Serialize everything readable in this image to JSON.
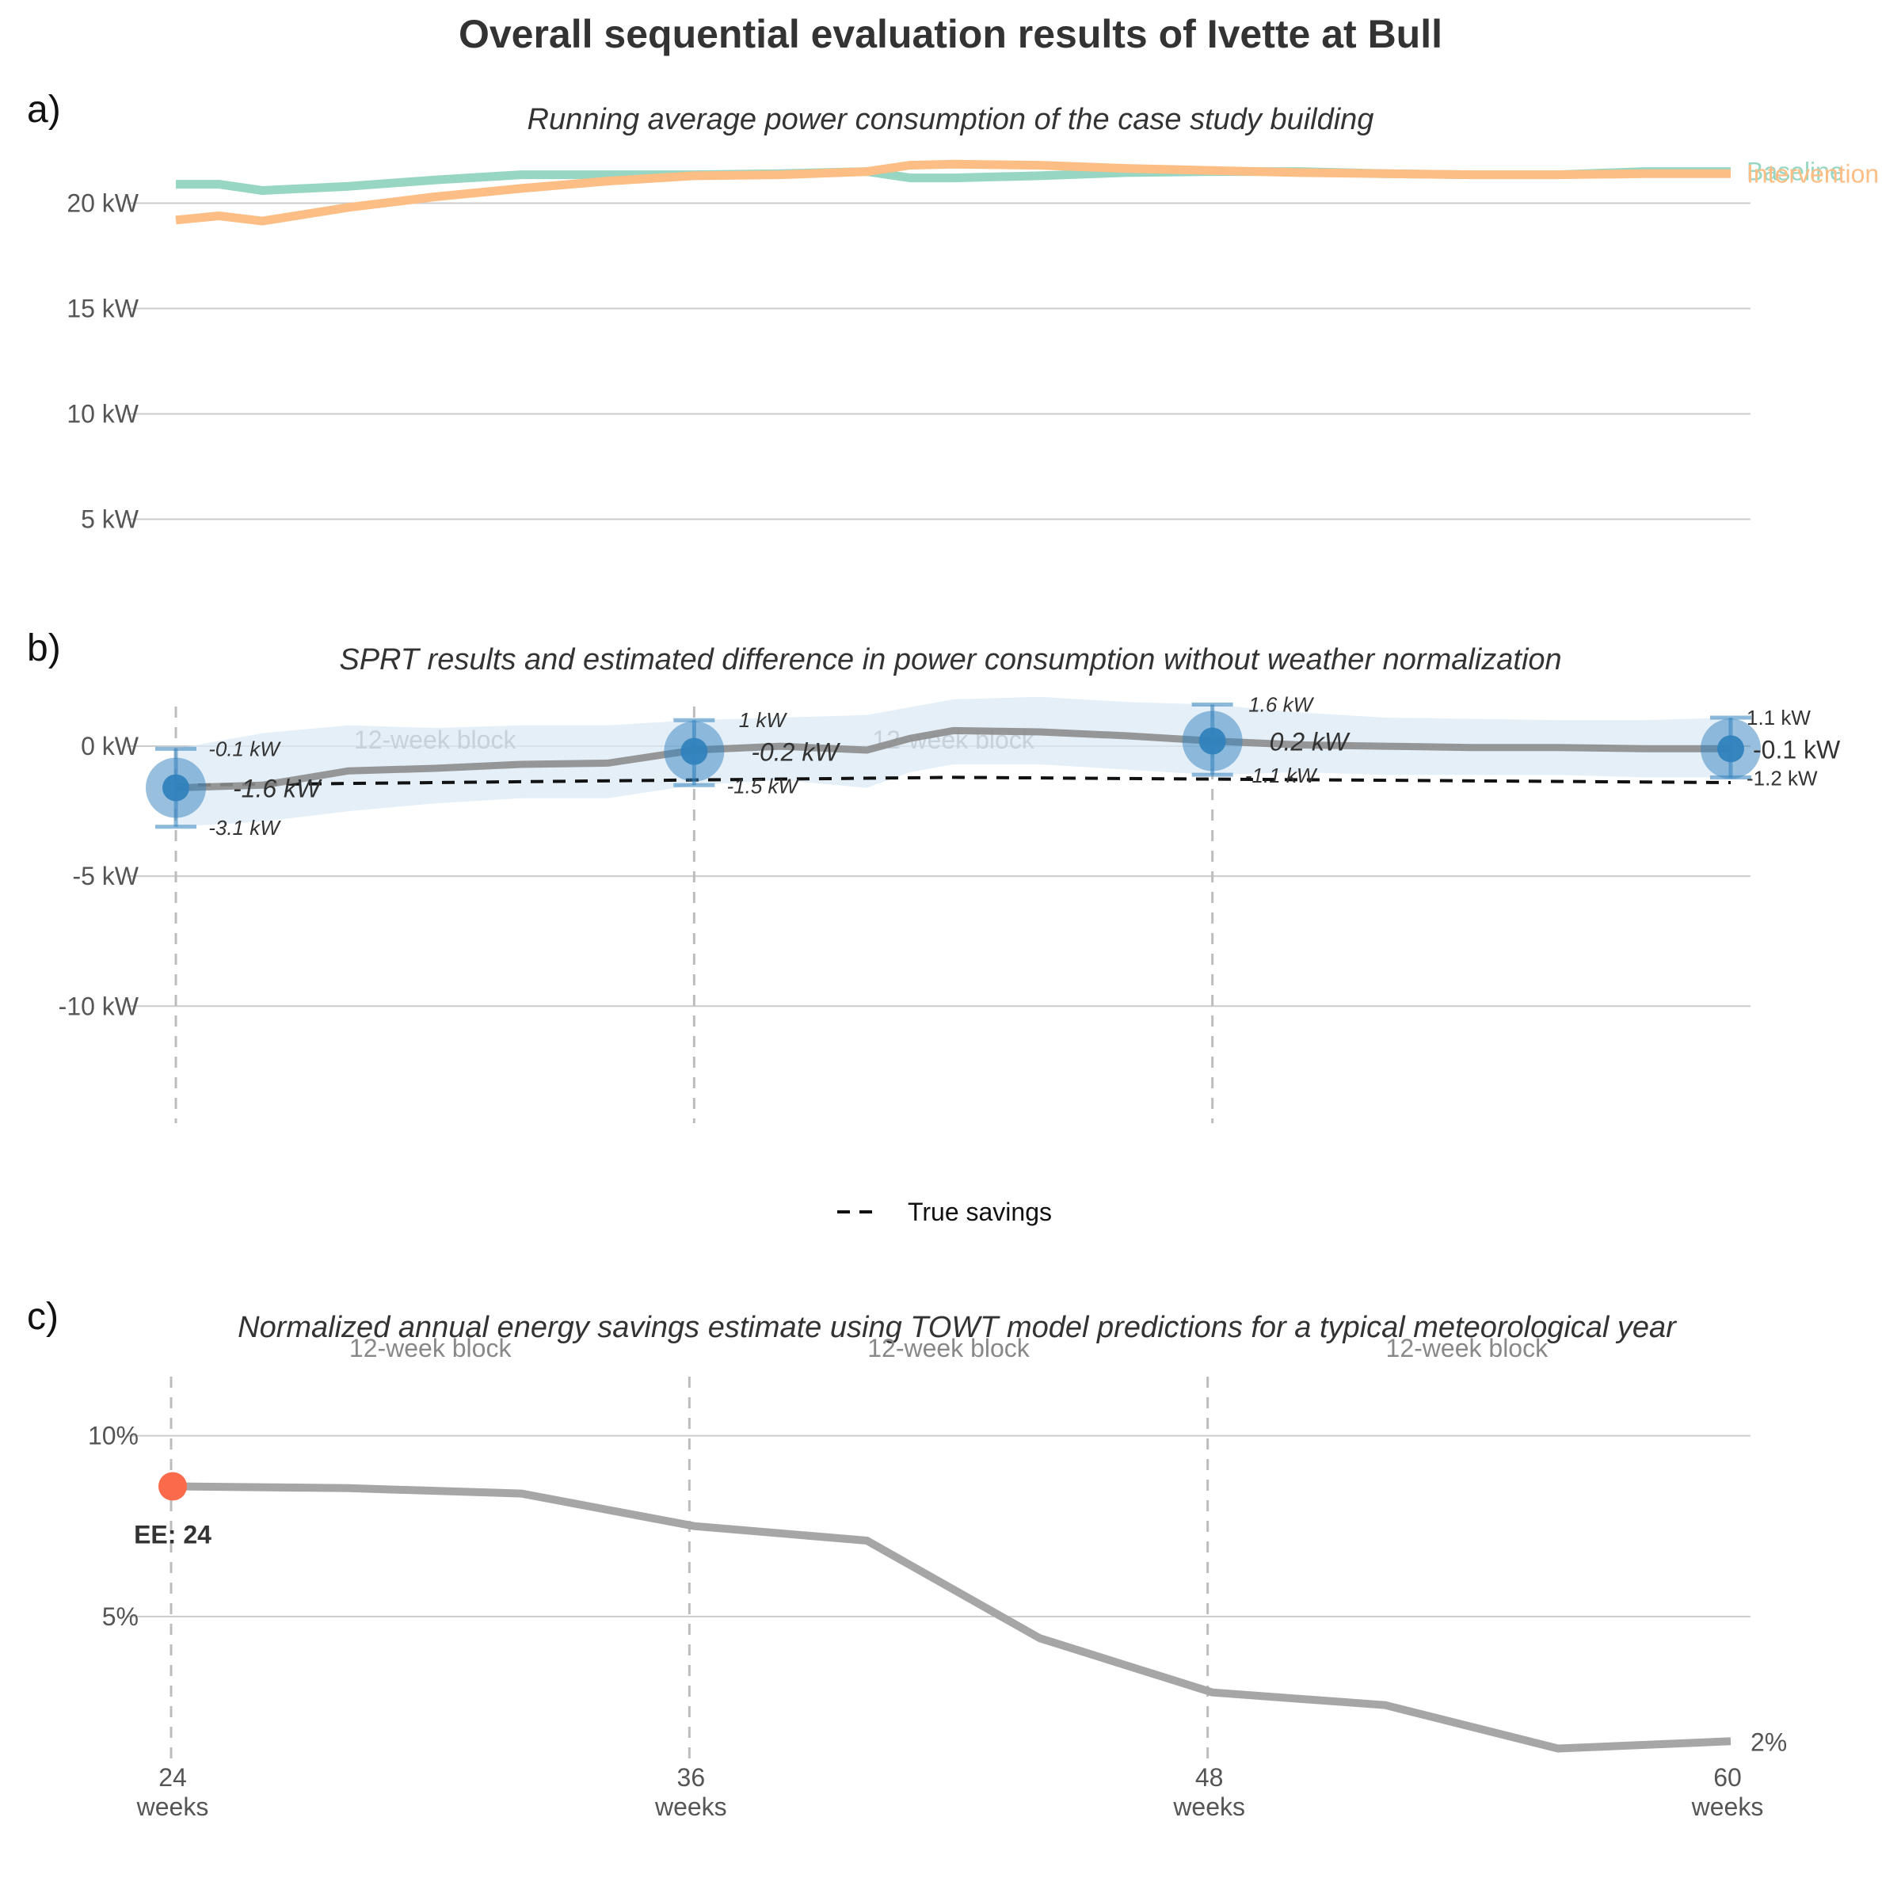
{
  "title": "Overall sequential evaluation results of Ivette at Bull",
  "colors": {
    "baseline": "#96d6c3",
    "intervention": "#fdbe85",
    "estimate_line": "#8c8c8c",
    "ci_band": "#dbe9f6",
    "point": "#3182bd",
    "true_savings": "#111111",
    "savings_line": "#a6a6a6",
    "ee_point": "#fb6a4a"
  },
  "chart_data": [
    {
      "panel": "a)",
      "type": "line",
      "title": "Running average power consumption of the case study building",
      "x": [
        24,
        25,
        26,
        28,
        30,
        32,
        34,
        36,
        38,
        40,
        41,
        42,
        44,
        46,
        48,
        50,
        52,
        54,
        56,
        58,
        60
      ],
      "series": [
        {
          "name": "Baseline",
          "values": [
            20.9,
            20.9,
            20.6,
            20.8,
            21.1,
            21.35,
            21.35,
            21.35,
            21.4,
            21.5,
            21.2,
            21.2,
            21.3,
            21.45,
            21.5,
            21.5,
            21.4,
            21.35,
            21.35,
            21.5,
            21.5
          ]
        },
        {
          "name": "Intervention",
          "values": [
            19.2,
            19.4,
            19.15,
            19.8,
            20.3,
            20.7,
            21.05,
            21.3,
            21.35,
            21.5,
            21.8,
            21.85,
            21.8,
            21.65,
            21.55,
            21.45,
            21.4,
            21.35,
            21.35,
            21.4,
            21.4
          ]
        }
      ],
      "yticks": [
        "5 kW",
        "10 kW",
        "15 kW",
        "20 kW"
      ],
      "ytick_values": [
        5,
        10,
        15,
        20
      ],
      "ylim": [
        2.5,
        22.5
      ],
      "xlim": [
        24,
        60
      ]
    },
    {
      "panel": "b)",
      "type": "line",
      "title": "SPRT results and estimated difference in power consumption without weather normalization",
      "x": [
        24,
        26,
        28,
        30,
        32,
        34,
        36,
        38,
        40,
        41,
        42,
        44,
        46,
        48,
        50,
        52,
        54,
        56,
        58,
        60
      ],
      "estimate": [
        -1.6,
        -1.5,
        -0.95,
        -0.85,
        -0.7,
        -0.65,
        -0.15,
        0.0,
        -0.15,
        0.3,
        0.6,
        0.55,
        0.4,
        0.2,
        0.05,
        0.0,
        -0.05,
        -0.05,
        -0.1,
        -0.1
      ],
      "ci_upper": [
        -0.1,
        0.5,
        0.8,
        0.7,
        0.8,
        0.8,
        1.0,
        1.1,
        1.2,
        1.5,
        1.8,
        1.9,
        1.7,
        1.6,
        1.3,
        1.1,
        1.05,
        1.0,
        1.0,
        1.1
      ],
      "ci_lower": [
        -3.1,
        -2.9,
        -2.5,
        -2.2,
        -2.0,
        -2.0,
        -1.5,
        -1.3,
        -1.6,
        -1.0,
        -0.7,
        -0.7,
        -0.9,
        -1.1,
        -1.0,
        -1.1,
        -1.1,
        -1.1,
        -1.2,
        -1.2
      ],
      "true_savings": [
        -1.5,
        -1.2,
        -1.4
      ],
      "true_savings_x": [
        24,
        42,
        60
      ],
      "points": [
        {
          "x": 24,
          "est": -1.6,
          "hi": -0.1,
          "lo": -3.1,
          "est_label": "-1.6 kW",
          "hi_label": "-0.1 kW",
          "lo_label": "-3.1 kW"
        },
        {
          "x": 36,
          "est": -0.2,
          "hi": 1.0,
          "lo": -1.5,
          "est_label": "-0.2 kW",
          "hi_label": "1 kW",
          "lo_label": "-1.5 kW"
        },
        {
          "x": 48,
          "est": 0.2,
          "hi": 1.6,
          "lo": -1.1,
          "est_label": "0.2 kW",
          "hi_label": "1.6 kW",
          "lo_label": "-1.1 kW"
        },
        {
          "x": 60,
          "est": -0.1,
          "hi": 1.1,
          "lo": -1.2,
          "est_label": "-0.1 kW",
          "hi_label": "1.1 kW",
          "lo_label": "-1.2 kW"
        }
      ],
      "block_labels": [
        "12-week block",
        "12-week block"
      ],
      "yticks": [
        "-10 kW",
        "-5 kW",
        "0 kW"
      ],
      "ytick_values": [
        -10,
        -5,
        0
      ],
      "ylim": [
        -14.5,
        2.5
      ],
      "xlim": [
        24,
        60
      ],
      "legend": "True savings",
      "legend_position": "bottom"
    },
    {
      "panel": "c)",
      "type": "line",
      "title": "Normalized annual energy savings estimate using TOWT model predictions for a typical meteorological year",
      "x": [
        24,
        28,
        32,
        36,
        40,
        44,
        48,
        52,
        56,
        60
      ],
      "values": [
        8.6,
        8.55,
        8.4,
        7.5,
        7.1,
        4.4,
        2.9,
        2.55,
        1.35,
        1.55
      ],
      "ee_point": {
        "x": 24,
        "value": 8.6,
        "label": "EE: 24"
      },
      "end_label": "2%",
      "block_labels": [
        "12-week block",
        "12-week block",
        "12-week block"
      ],
      "yticks": [
        "5%",
        "10%"
      ],
      "ytick_values": [
        5,
        10
      ],
      "ylim": [
        0.9,
        11.7
      ],
      "xlim": [
        24,
        60
      ],
      "xticks": [
        {
          "value": 24,
          "line1": "24",
          "line2": "weeks"
        },
        {
          "value": 36,
          "line1": "36",
          "line2": "weeks"
        },
        {
          "value": 48,
          "line1": "48",
          "line2": "weeks"
        },
        {
          "value": 60,
          "line1": "60",
          "line2": "weeks"
        }
      ]
    }
  ]
}
